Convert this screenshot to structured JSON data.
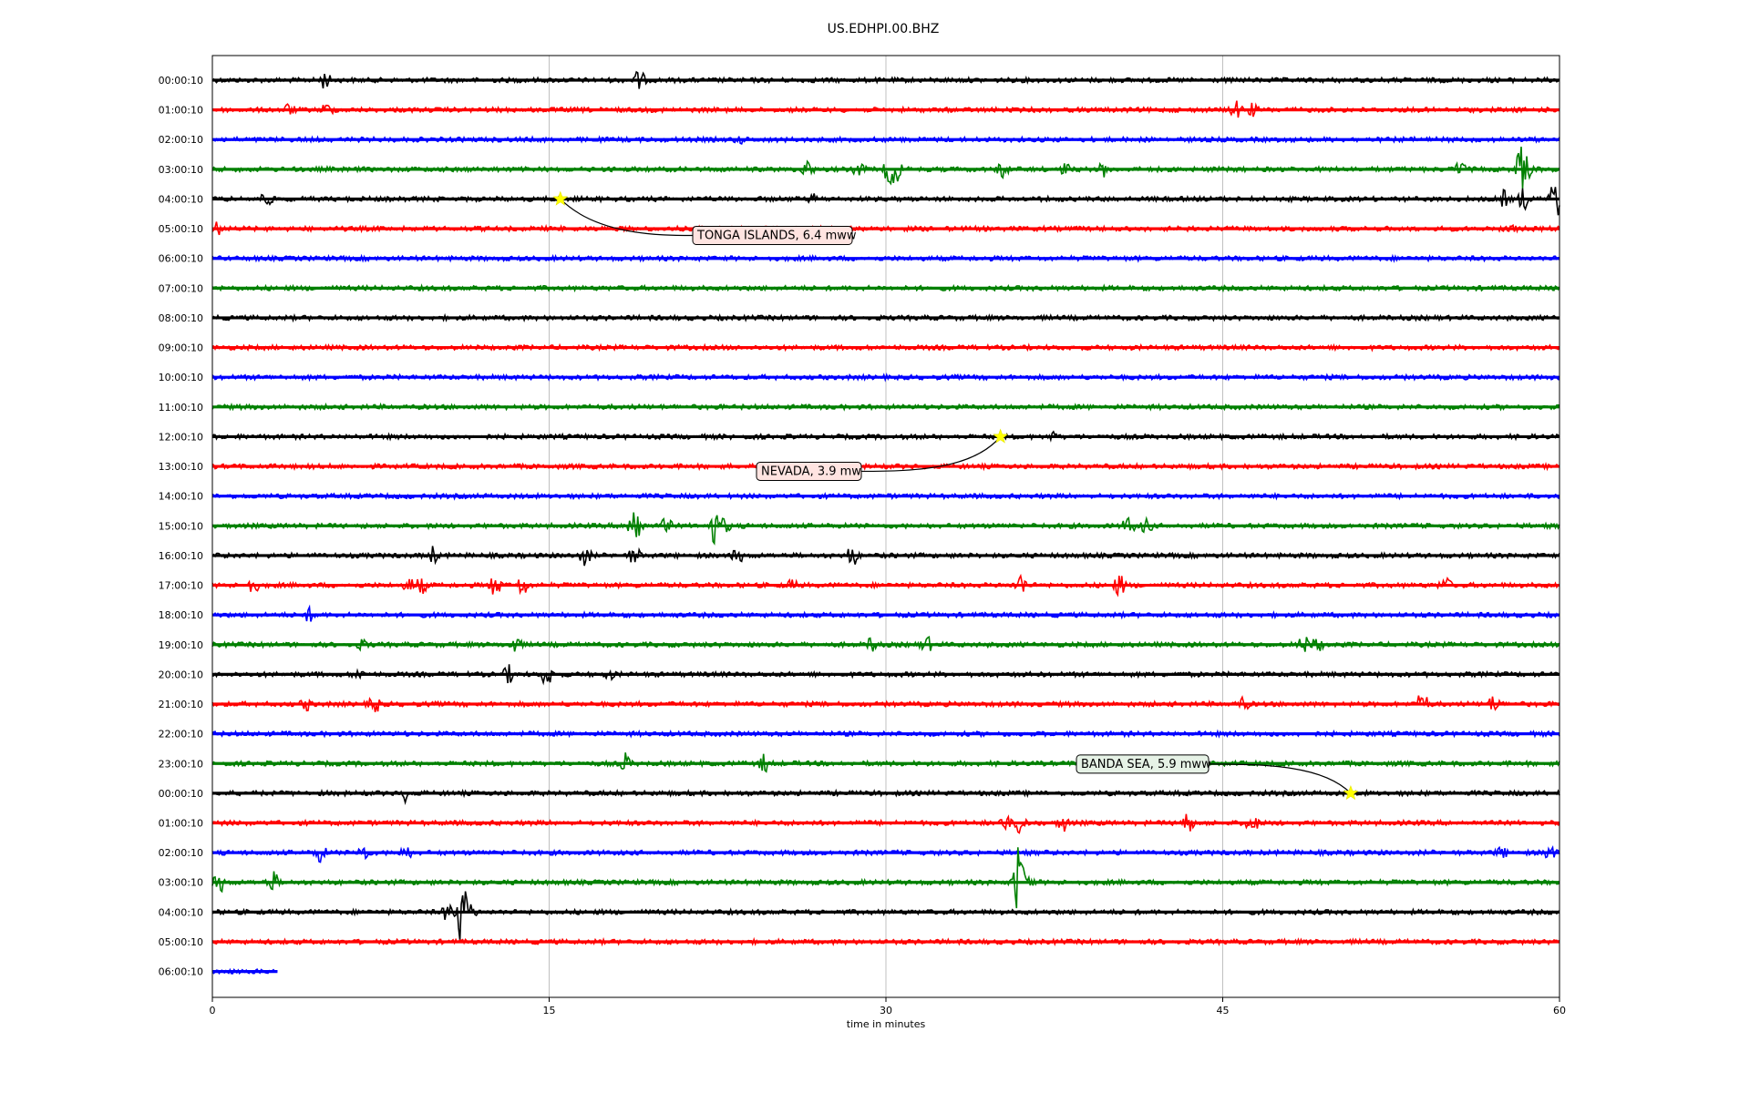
{
  "chart_data": {
    "type": "line",
    "title": "US.EDHPI.00.BHZ",
    "xlabel": "time in minutes",
    "ylabel": "",
    "xlim": [
      0,
      60
    ],
    "xticks": [
      0,
      15,
      30,
      45,
      60
    ],
    "grid_x": true,
    "colors": [
      "#000000",
      "#ff0000",
      "#0000ff",
      "#008000"
    ],
    "rows": [
      {
        "label": "00:00:10",
        "end": 60,
        "bursts": [
          [
            5,
            9
          ],
          [
            19,
            11
          ]
        ]
      },
      {
        "label": "01:00:10",
        "end": 60,
        "bursts": [
          [
            3.4,
            6
          ],
          [
            5.1,
            7
          ],
          [
            45.6,
            9
          ],
          [
            46.3,
            6
          ]
        ]
      },
      {
        "label": "02:00:10",
        "end": 60,
        "bursts": [
          [
            23.5,
            3
          ]
        ]
      },
      {
        "label": "03:00:10",
        "end": 60,
        "bursts": [
          [
            26.5,
            10
          ],
          [
            28.8,
            7
          ],
          [
            30.2,
            22
          ],
          [
            30.5,
            12
          ],
          [
            35.2,
            9
          ],
          [
            38,
            6
          ],
          [
            39.7,
            7
          ],
          [
            55.6,
            9
          ],
          [
            58.3,
            26
          ],
          [
            58.5,
            14
          ]
        ]
      },
      {
        "label": "04:00:10",
        "end": 60,
        "bursts": [
          [
            2.4,
            8
          ],
          [
            26.8,
            4
          ],
          [
            57.5,
            9
          ],
          [
            58.4,
            12
          ],
          [
            59.8,
            28
          ]
        ]
      },
      {
        "label": "05:00:10",
        "end": 60,
        "bursts": [
          [
            0.2,
            7
          ],
          [
            57.8,
            4
          ]
        ]
      },
      {
        "label": "06:00:10",
        "end": 60,
        "bursts": []
      },
      {
        "label": "07:00:10",
        "end": 60,
        "bursts": []
      },
      {
        "label": "08:00:10",
        "end": 60,
        "bursts": []
      },
      {
        "label": "09:00:10",
        "end": 60,
        "bursts": []
      },
      {
        "label": "10:00:10",
        "end": 60,
        "bursts": []
      },
      {
        "label": "11:00:10",
        "end": 60,
        "bursts": []
      },
      {
        "label": "12:00:10",
        "end": 60,
        "bursts": [
          [
            37.4,
            4
          ]
        ]
      },
      {
        "label": "13:00:10",
        "end": 60,
        "bursts": []
      },
      {
        "label": "14:00:10",
        "end": 60,
        "bursts": []
      },
      {
        "label": "15:00:10",
        "end": 60,
        "bursts": [
          [
            18.6,
            12
          ],
          [
            18.9,
            30
          ],
          [
            20.2,
            8
          ],
          [
            22.4,
            22
          ],
          [
            22.8,
            8
          ],
          [
            40.8,
            10
          ],
          [
            41.6,
            8
          ]
        ]
      },
      {
        "label": "16:00:10",
        "end": 60,
        "bursts": [
          [
            9.8,
            9
          ],
          [
            16.6,
            10
          ],
          [
            18.8,
            10
          ],
          [
            23.4,
            8
          ],
          [
            28.5,
            12
          ]
        ]
      },
      {
        "label": "17:00:10",
        "end": 60,
        "bursts": [
          [
            1.8,
            9
          ],
          [
            8.8,
            8
          ],
          [
            9.3,
            9
          ],
          [
            12.6,
            12
          ],
          [
            13.8,
            12
          ],
          [
            25.8,
            5
          ],
          [
            36,
            12
          ],
          [
            40.4,
            12
          ],
          [
            54.9,
            9
          ]
        ]
      },
      {
        "label": "18:00:10",
        "end": 60,
        "bursts": [
          [
            4.3,
            7
          ]
        ]
      },
      {
        "label": "19:00:10",
        "end": 60,
        "bursts": [
          [
            6.7,
            5
          ],
          [
            13.5,
            9
          ],
          [
            29.4,
            8
          ],
          [
            31.8,
            9
          ],
          [
            48.6,
            10
          ],
          [
            49.2,
            8
          ]
        ]
      },
      {
        "label": "20:00:10",
        "end": 60,
        "bursts": [
          [
            6.5,
            5
          ],
          [
            13.2,
            9
          ],
          [
            14.9,
            14
          ],
          [
            17.7,
            4
          ]
        ]
      },
      {
        "label": "21:00:10",
        "end": 60,
        "bursts": [
          [
            4.2,
            6
          ],
          [
            7.2,
            11
          ],
          [
            45.9,
            7
          ],
          [
            53.9,
            14
          ],
          [
            57.1,
            10
          ]
        ]
      },
      {
        "label": "22:00:10",
        "end": 60,
        "bursts": []
      },
      {
        "label": "23:00:10",
        "end": 60,
        "bursts": [
          [
            18.4,
            10
          ],
          [
            24.6,
            10
          ]
        ]
      },
      {
        "label": "00:00:10",
        "end": 60,
        "bursts": [
          [
            8.6,
            8
          ]
        ]
      },
      {
        "label": "01:00:10",
        "end": 60,
        "bursts": [
          [
            35.3,
            8
          ],
          [
            36,
            15
          ],
          [
            37.9,
            9
          ],
          [
            43.4,
            14
          ],
          [
            46.3,
            12
          ]
        ]
      },
      {
        "label": "02:00:10",
        "end": 60,
        "bursts": [
          [
            4.8,
            10
          ],
          [
            6.7,
            9
          ],
          [
            8.6,
            7
          ],
          [
            57.4,
            6
          ],
          [
            59.6,
            9
          ]
        ]
      },
      {
        "label": "03:00:10",
        "end": 60,
        "bursts": [
          [
            0.3,
            12
          ],
          [
            2.7,
            12
          ],
          [
            35.9,
            45
          ],
          [
            36.3,
            10
          ]
        ]
      },
      {
        "label": "04:00:10",
        "end": 60,
        "bursts": [
          [
            10.5,
            10
          ],
          [
            11.1,
            40
          ],
          [
            11.5,
            9
          ]
        ]
      },
      {
        "label": "05:00:10",
        "end": 60,
        "bursts": []
      },
      {
        "label": "06:00:10",
        "end": 2.9,
        "bursts": []
      }
    ],
    "events": [
      {
        "text": "TONGA ISLANDS, 6.4 mww",
        "row": 4,
        "x": 15.5,
        "fill": "#ffe4e1"
      },
      {
        "text": "NEVADA, 3.9 mw",
        "row": 12,
        "x": 35.1,
        "fill": "#ffe4e1"
      },
      {
        "text": "BANDA SEA, 5.9 mww",
        "row": 24,
        "x": 50.7,
        "fill": "#e6f2e6"
      }
    ]
  }
}
